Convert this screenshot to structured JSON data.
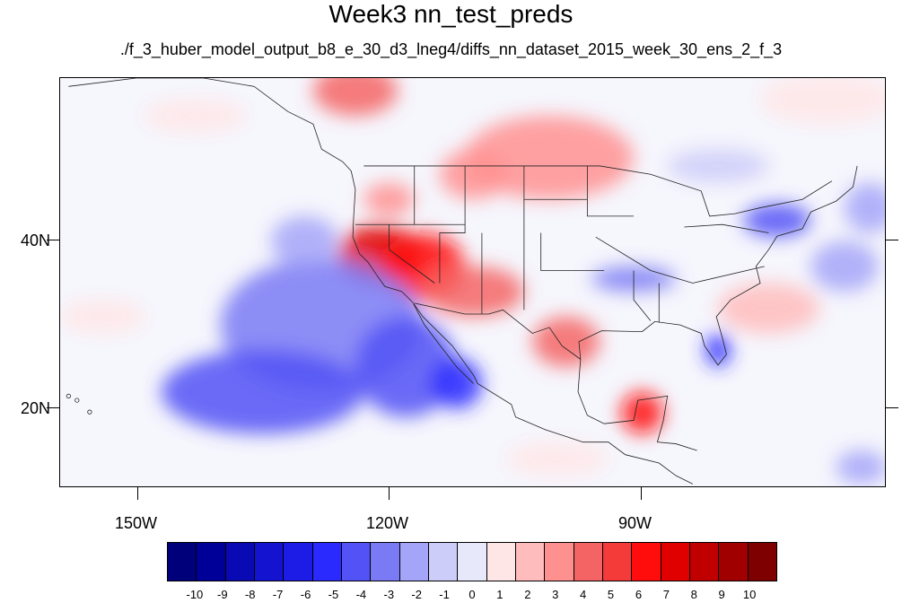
{
  "title": "Week3 nn_test_preds",
  "subtitle": "./f_3_huber_model_output_b8_e_30_d3_lneg4/diffs_nn_dataset_2015_week_30_ens_2_f_3",
  "axes": {
    "lon_labels": [
      "150W",
      "120W",
      "90W"
    ],
    "lat_labels": [
      "40N",
      "20N"
    ]
  },
  "chart_data": {
    "type": "heatmap",
    "title": "Week3 nn_test_preds",
    "subtitle": "./f_3_huber_model_output_b8_e_30_d3_lneg4/diffs_nn_dataset_2015_week_30_ens_2_f_3",
    "lon_range": [
      -159,
      -61
    ],
    "lat_range": [
      10.5,
      59.5
    ],
    "lon_ticks": [
      -150,
      -120,
      -90
    ],
    "lat_ticks": [
      40,
      20
    ],
    "colorbar": {
      "levels": [
        "-10",
        "-9",
        "-8",
        "-7",
        "-6",
        "-5",
        "-4",
        "-3",
        "-2",
        "-1",
        "0",
        "1",
        "2",
        "3",
        "4",
        "5",
        "6",
        "7",
        "8",
        "9",
        "10"
      ],
      "colors": [
        "#00007a",
        "#000098",
        "#0a0ab4",
        "#1414d0",
        "#1c1ce6",
        "#2a2aff",
        "#5252f6",
        "#7a7af4",
        "#a4a4f8",
        "#cdcdf9",
        "#e8e8fb",
        "#ffe6e6",
        "#ffbcbc",
        "#ff9090",
        "#f46464",
        "#f53a3a",
        "#ff0c0c",
        "#e00000",
        "#c00000",
        "#a00000",
        "#7e0000"
      ]
    },
    "anomaly_blobs": [
      {
        "lon": -124,
        "lat": 58,
        "rx": 5,
        "ry": 3,
        "value": 4
      },
      {
        "lon": -110,
        "lat": 48,
        "rx": 4,
        "ry": 3,
        "value": 3
      },
      {
        "lon": -101,
        "lat": 50,
        "rx": 10,
        "ry": 5,
        "value": 3
      },
      {
        "lon": -120,
        "lat": 45,
        "rx": 3,
        "ry": 2,
        "value": 3
      },
      {
        "lon": -121,
        "lat": 38.5,
        "rx": 5,
        "ry": 3.5,
        "value": 7
      },
      {
        "lon": -116,
        "lat": 37,
        "rx": 5,
        "ry": 4,
        "value": 6
      },
      {
        "lon": -110,
        "lat": 34,
        "rx": 6,
        "ry": 3,
        "value": 4
      },
      {
        "lon": -99,
        "lat": 28,
        "rx": 4,
        "ry": 3,
        "value": 4
      },
      {
        "lon": -90,
        "lat": 19.5,
        "rx": 2.5,
        "ry": 2.5,
        "value": 6
      },
      {
        "lon": -75,
        "lat": 32,
        "rx": 6,
        "ry": 3,
        "value": 2
      },
      {
        "lon": -68,
        "lat": 57,
        "rx": 8,
        "ry": 3,
        "value": 1
      },
      {
        "lon": -143,
        "lat": 55,
        "rx": 6,
        "ry": 2,
        "value": 1
      },
      {
        "lon": -154,
        "lat": 31,
        "rx": 5,
        "ry": 2,
        "value": 1
      },
      {
        "lon": -100,
        "lat": 14,
        "rx": 6,
        "ry": 2,
        "value": 1
      },
      {
        "lon": -128,
        "lat": 30,
        "rx": 12,
        "ry": 8,
        "value": -3
      },
      {
        "lon": -135,
        "lat": 22,
        "rx": 12,
        "ry": 5,
        "value": -4
      },
      {
        "lon": -118,
        "lat": 25,
        "rx": 6,
        "ry": 6,
        "value": -4
      },
      {
        "lon": -112,
        "lat": 23,
        "rx": 3,
        "ry": 3,
        "value": -5
      },
      {
        "lon": -130,
        "lat": 40,
        "rx": 4,
        "ry": 3,
        "value": -2
      },
      {
        "lon": -91,
        "lat": 35.5,
        "rx": 5,
        "ry": 1.5,
        "value": -3
      },
      {
        "lon": -74,
        "lat": 42.5,
        "rx": 4,
        "ry": 2,
        "value": -4
      },
      {
        "lon": -81,
        "lat": 27,
        "rx": 1.5,
        "ry": 2,
        "value": -5
      },
      {
        "lon": -81,
        "lat": 49,
        "rx": 6,
        "ry": 2,
        "value": -1
      },
      {
        "lon": -66,
        "lat": 37,
        "rx": 4,
        "ry": 3,
        "value": -2
      },
      {
        "lon": -63,
        "lat": 44,
        "rx": 3,
        "ry": 3,
        "value": -2
      },
      {
        "lon": -64,
        "lat": 13,
        "rx": 3,
        "ry": 2,
        "value": -2
      }
    ]
  }
}
